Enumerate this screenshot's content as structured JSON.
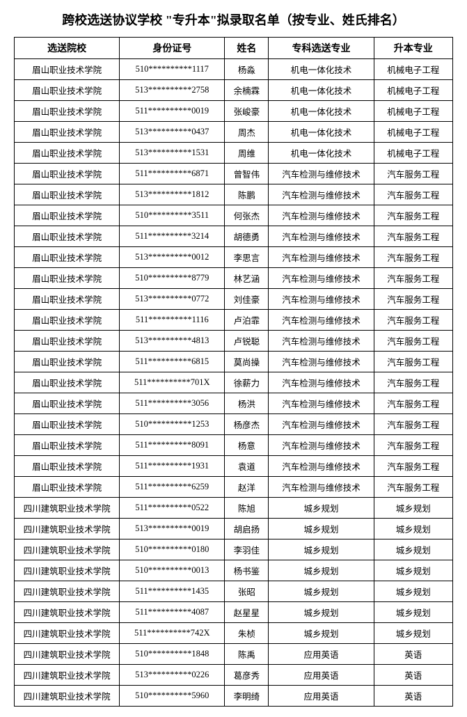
{
  "title": "跨校选送协议学校 \"专升本\"拟录取名单（按专业、姓氏排名）",
  "columns": [
    "选送院校",
    "身份证号",
    "姓名",
    "专科选送专业",
    "升本专业"
  ],
  "column_widths": [
    "24%",
    "24%",
    "10%",
    "24%",
    "18%"
  ],
  "title_fontsize": 18,
  "header_fontsize": 14,
  "cell_fontsize": 12.5,
  "background_color": "#ffffff",
  "text_color": "#000000",
  "border_color": "#000000",
  "rows": [
    [
      "眉山职业技术学院",
      "510**********1117",
      "杨淼",
      "机电一体化技术",
      "机械电子工程"
    ],
    [
      "眉山职业技术学院",
      "513**********2758",
      "余楠霖",
      "机电一体化技术",
      "机械电子工程"
    ],
    [
      "眉山职业技术学院",
      "511**********0019",
      "张峻豪",
      "机电一体化技术",
      "机械电子工程"
    ],
    [
      "眉山职业技术学院",
      "513**********0437",
      "周杰",
      "机电一体化技术",
      "机械电子工程"
    ],
    [
      "眉山职业技术学院",
      "513**********1531",
      "周维",
      "机电一体化技术",
      "机械电子工程"
    ],
    [
      "眉山职业技术学院",
      "511**********6871",
      "曾智伟",
      "汽车检测与维修技术",
      "汽车服务工程"
    ],
    [
      "眉山职业技术学院",
      "513**********1812",
      "陈鹏",
      "汽车检测与维修技术",
      "汽车服务工程"
    ],
    [
      "眉山职业技术学院",
      "510**********3511",
      "何张杰",
      "汽车检测与维修技术",
      "汽车服务工程"
    ],
    [
      "眉山职业技术学院",
      "511**********3214",
      "胡德勇",
      "汽车检测与维修技术",
      "汽车服务工程"
    ],
    [
      "眉山职业技术学院",
      "513**********0012",
      "李思言",
      "汽车检测与维修技术",
      "汽车服务工程"
    ],
    [
      "眉山职业技术学院",
      "510**********8779",
      "林艺涵",
      "汽车检测与维修技术",
      "汽车服务工程"
    ],
    [
      "眉山职业技术学院",
      "513**********0772",
      "刘佳豪",
      "汽车检测与维修技术",
      "汽车服务工程"
    ],
    [
      "眉山职业技术学院",
      "511**********1116",
      "卢泊霏",
      "汽车检测与维修技术",
      "汽车服务工程"
    ],
    [
      "眉山职业技术学院",
      "513**********4813",
      "卢锐聪",
      "汽车检测与维修技术",
      "汽车服务工程"
    ],
    [
      "眉山职业技术学院",
      "511**********6815",
      "莫尚操",
      "汽车检测与维修技术",
      "汽车服务工程"
    ],
    [
      "眉山职业技术学院",
      "511**********701X",
      "徐薪力",
      "汽车检测与维修技术",
      "汽车服务工程"
    ],
    [
      "眉山职业技术学院",
      "511**********3056",
      "杨洪",
      "汽车检测与维修技术",
      "汽车服务工程"
    ],
    [
      "眉山职业技术学院",
      "510**********1253",
      "杨彦杰",
      "汽车检测与维修技术",
      "汽车服务工程"
    ],
    [
      "眉山职业技术学院",
      "511**********8091",
      "杨意",
      "汽车检测与维修技术",
      "汽车服务工程"
    ],
    [
      "眉山职业技术学院",
      "511**********1931",
      "袁道",
      "汽车检测与维修技术",
      "汽车服务工程"
    ],
    [
      "眉山职业技术学院",
      "511**********6259",
      "赵洋",
      "汽车检测与维修技术",
      "汽车服务工程"
    ],
    [
      "四川建筑职业技术学院",
      "511**********0522",
      "陈旭",
      "城乡规划",
      "城乡规划"
    ],
    [
      "四川建筑职业技术学院",
      "513**********0019",
      "胡启扬",
      "城乡规划",
      "城乡规划"
    ],
    [
      "四川建筑职业技术学院",
      "510**********0180",
      "李羽佳",
      "城乡规划",
      "城乡规划"
    ],
    [
      "四川建筑职业技术学院",
      "510**********0013",
      "杨书鉴",
      "城乡规划",
      "城乡规划"
    ],
    [
      "四川建筑职业技术学院",
      "511**********1435",
      "张昭",
      "城乡规划",
      "城乡规划"
    ],
    [
      "四川建筑职业技术学院",
      "511**********4087",
      "赵星星",
      "城乡规划",
      "城乡规划"
    ],
    [
      "四川建筑职业技术学院",
      "511**********742X",
      "朱桢",
      "城乡规划",
      "城乡规划"
    ],
    [
      "四川建筑职业技术学院",
      "510**********1848",
      "陈禹",
      "应用英语",
      "英语"
    ],
    [
      "四川建筑职业技术学院",
      "513**********0226",
      "葛彦秀",
      "应用英语",
      "英语"
    ],
    [
      "四川建筑职业技术学院",
      "510**********5960",
      "李明绮",
      "应用英语",
      "英语"
    ]
  ]
}
